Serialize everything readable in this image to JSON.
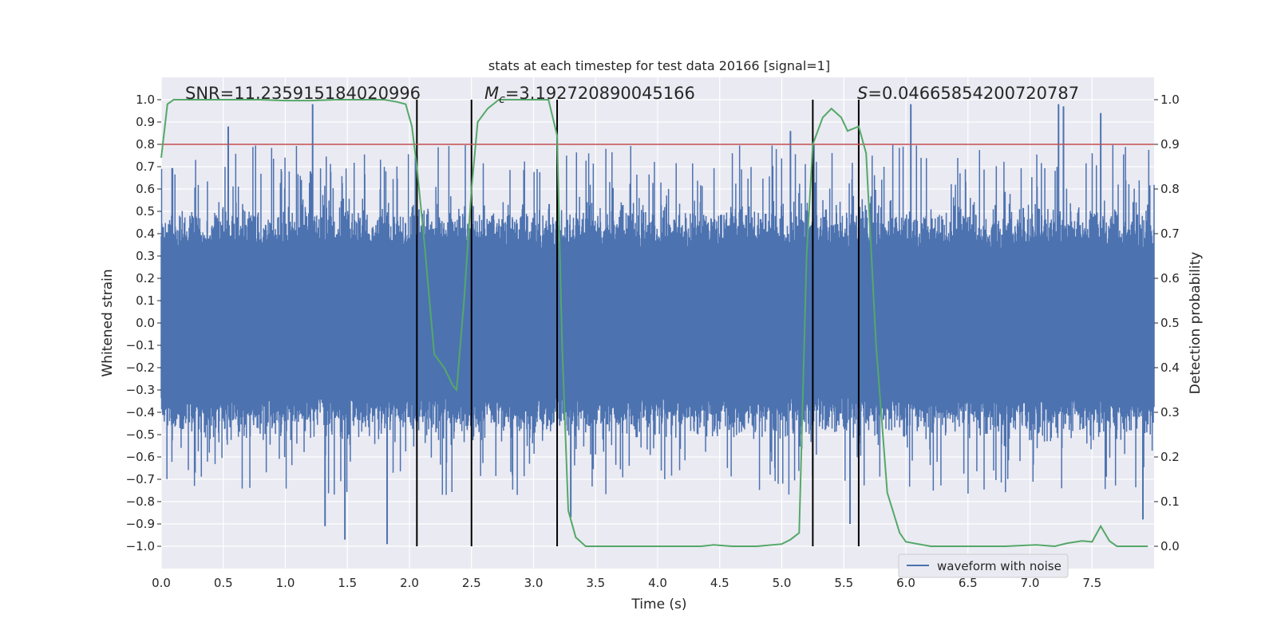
{
  "chart_data": {
    "type": "line",
    "title": "stats at each timestep for test data 20166 [signal=1]",
    "xlabel": "Time (s)",
    "ylabel": "Whitened strain",
    "y2label": "Detection probability",
    "xlim": [
      0.0,
      8.0
    ],
    "ylim": [
      -1.1,
      1.1
    ],
    "y2lim": [
      -0.05,
      1.05
    ],
    "x_ticks": [
      "0.0",
      "0.5",
      "1.0",
      "1.5",
      "2.0",
      "2.5",
      "3.0",
      "3.5",
      "4.0",
      "4.5",
      "5.0",
      "5.5",
      "6.0",
      "6.5",
      "7.0",
      "7.5"
    ],
    "y_ticks": [
      "1.0",
      "0.9",
      "0.8",
      "0.7",
      "0.6",
      "0.5",
      "0.4",
      "0.3",
      "0.2",
      "0.1",
      "0.0",
      "−0.1",
      "−0.2",
      "−0.3",
      "−0.4",
      "−0.5",
      "−0.6",
      "−0.7",
      "−0.8",
      "−0.9",
      "−1.0"
    ],
    "y2_ticks": [
      "1.0",
      "0.9",
      "0.8",
      "0.7",
      "0.6",
      "0.5",
      "0.4",
      "0.3",
      "0.2",
      "0.1",
      "0.0"
    ],
    "annotations": {
      "snr": "SNR=11.235915184020996",
      "mc_symbol": "M",
      "mc_sub": "c",
      "mc_value": "=3.192720890045166",
      "s_symbol": "S",
      "s_value": "=0.04665854200720787"
    },
    "threshold": {
      "y2": 0.9,
      "color": "#c44e52"
    },
    "vertical_lines_x": [
      2.06,
      2.5,
      3.19,
      5.25,
      5.62
    ],
    "waveform": {
      "name": "waveform with noise",
      "color": "#4c72b0",
      "x_range": [
        0.0,
        8.0
      ],
      "spike_peaks": [
        {
          "x": 0.54,
          "y": 0.88
        },
        {
          "x": 1.22,
          "y": 0.98
        },
        {
          "x": 1.82,
          "y": -0.99
        },
        {
          "x": 1.48,
          "y": -0.97
        },
        {
          "x": 1.32,
          "y": -0.91
        },
        {
          "x": 3.3,
          "y": -0.87
        },
        {
          "x": 5.55,
          "y": -0.9
        },
        {
          "x": 5.07,
          "y": 0.86
        },
        {
          "x": 6.04,
          "y": 0.98
        },
        {
          "x": 7.23,
          "y": 0.98
        },
        {
          "x": 7.27,
          "y": 0.97
        },
        {
          "x": 7.57,
          "y": 0.94
        },
        {
          "x": 7.91,
          "y": -0.88
        }
      ]
    },
    "probability": {
      "name": "detection probability",
      "color": "#55a868",
      "x": [
        0.0,
        0.05,
        0.1,
        0.2,
        0.4,
        0.6,
        0.8,
        1.0,
        1.2,
        1.4,
        1.6,
        1.8,
        1.9,
        1.97,
        2.02,
        2.06,
        2.12,
        2.2,
        2.28,
        2.35,
        2.38,
        2.44,
        2.5,
        2.55,
        2.63,
        2.72,
        2.82,
        3.0,
        3.12,
        3.19,
        3.23,
        3.28,
        3.34,
        3.42,
        3.5,
        3.7,
        4.0,
        4.2,
        4.35,
        4.45,
        4.6,
        4.8,
        5.0,
        5.07,
        5.14,
        5.2,
        5.25,
        5.33,
        5.4,
        5.48,
        5.53,
        5.62,
        5.68,
        5.76,
        5.85,
        5.95,
        6.0,
        6.2,
        6.5,
        6.8,
        7.05,
        7.2,
        7.3,
        7.42,
        7.5,
        7.57,
        7.64,
        7.7,
        7.95
      ],
      "y": [
        0.87,
        0.99,
        1.0,
        1.0,
        1.0,
        1.0,
        1.0,
        0.998,
        0.998,
        1.0,
        1.0,
        1.0,
        0.995,
        0.99,
        0.94,
        0.85,
        0.68,
        0.43,
        0.4,
        0.36,
        0.35,
        0.55,
        0.8,
        0.95,
        0.98,
        1.0,
        1.0,
        1.0,
        1.0,
        0.92,
        0.45,
        0.08,
        0.02,
        0.0,
        0.0,
        0.0,
        0.0,
        0.0,
        0.0,
        0.003,
        0.0,
        0.0,
        0.005,
        0.015,
        0.03,
        0.65,
        0.9,
        0.96,
        0.98,
        0.96,
        0.93,
        0.94,
        0.88,
        0.45,
        0.12,
        0.03,
        0.01,
        0.0,
        0.0,
        0.0,
        0.003,
        0.0,
        0.007,
        0.012,
        0.01,
        0.045,
        0.012,
        0.0,
        0.0
      ]
    },
    "legend": {
      "entries": [
        "waveform with noise"
      ],
      "placement": "bottom-right"
    },
    "grid": true
  }
}
